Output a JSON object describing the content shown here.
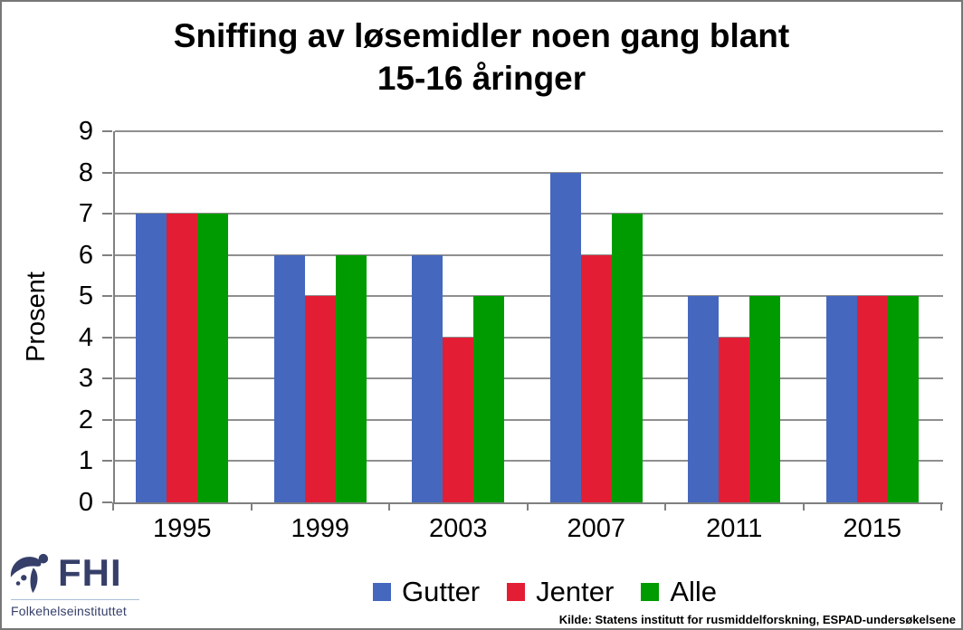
{
  "header": {
    "title_line1": "Sniffing av løsemidler noen gang blant",
    "title_line2": "15-16 åringer"
  },
  "chart_data": {
    "type": "bar",
    "title": "Sniffing av løsemidler noen gang blant 15-16 åringer",
    "categories": [
      "1995",
      "1999",
      "2003",
      "2007",
      "2011",
      "2015"
    ],
    "series": [
      {
        "name": "Gutter",
        "color": "#4667be",
        "values": [
          7,
          6,
          6,
          8,
          5,
          5
        ]
      },
      {
        "name": "Jenter",
        "color": "#e31e34",
        "values": [
          7,
          5,
          4,
          6,
          4,
          5
        ]
      },
      {
        "name": "Alle",
        "color": "#009b00",
        "values": [
          7,
          6,
          5,
          7,
          5,
          5
        ]
      }
    ],
    "xlabel": "",
    "ylabel": "Prosent",
    "ylim": [
      0,
      9
    ],
    "yticks": [
      0,
      1,
      2,
      3,
      4,
      5,
      6,
      7,
      8,
      9
    ],
    "grid": true,
    "legend_position": "bottom",
    "gridline_color": "#8f8f8f",
    "axis_color": "#808080"
  },
  "logo": {
    "abbr": "FHI",
    "name": "Folkehelseinstituttet",
    "color": "#363f69"
  },
  "source": {
    "text": "Kilde: Statens institutt for rusmiddelforskning, ESPAD-undersøkelsene"
  }
}
